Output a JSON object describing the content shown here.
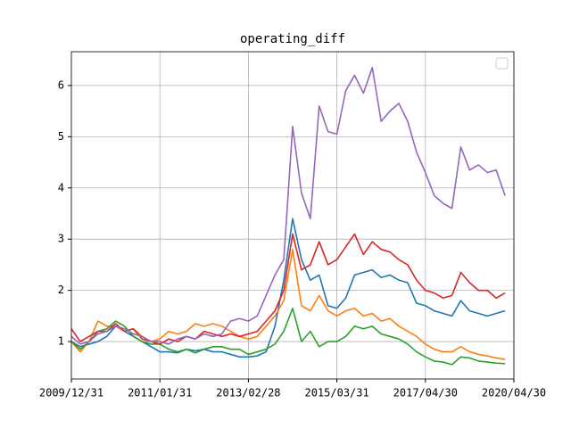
{
  "chart_data": {
    "type": "line",
    "title": "operating_diff",
    "xlim": [
      0,
      50
    ],
    "xticks": [
      {
        "value": 0,
        "label": "2009/12/31"
      },
      {
        "value": 10,
        "label": "2011/01/31"
      },
      {
        "value": 20,
        "label": "2013/02/28"
      },
      {
        "value": 30,
        "label": "2015/03/31"
      },
      {
        "value": 40,
        "label": "2017/04/30"
      },
      {
        "value": 50,
        "label": "2020/04/30"
      }
    ],
    "ylim": [
      0.27,
      6.66
    ],
    "yticks": [
      1,
      2,
      3,
      4,
      5,
      6
    ],
    "grid": true,
    "legend": "upper right",
    "series": [
      {
        "color": "#1f77b4",
        "values": [
          1.0,
          0.9,
          0.95,
          1.0,
          1.1,
          1.3,
          1.2,
          1.1,
          1.0,
          0.9,
          0.8,
          0.8,
          0.78,
          0.85,
          0.82,
          0.85,
          0.8,
          0.8,
          0.75,
          0.7,
          0.7,
          0.72,
          0.8,
          1.3,
          2.2,
          3.4,
          2.6,
          2.2,
          2.3,
          1.7,
          1.65,
          1.85,
          2.3,
          2.35,
          2.4,
          2.25,
          2.3,
          2.2,
          2.15,
          1.75,
          1.7,
          1.6,
          1.55,
          1.5,
          1.8,
          1.6,
          1.55,
          1.5,
          1.55,
          1.6
        ]
      },
      {
        "color": "#ff7f0e",
        "values": [
          1.0,
          0.8,
          1.0,
          1.4,
          1.3,
          1.3,
          1.2,
          1.25,
          1.1,
          1.0,
          1.05,
          1.2,
          1.15,
          1.2,
          1.35,
          1.3,
          1.35,
          1.3,
          1.2,
          1.1,
          1.05,
          1.1,
          1.3,
          1.5,
          1.8,
          2.8,
          1.7,
          1.6,
          1.9,
          1.6,
          1.5,
          1.6,
          1.65,
          1.5,
          1.55,
          1.4,
          1.45,
          1.3,
          1.2,
          1.1,
          0.95,
          0.85,
          0.8,
          0.8,
          0.9,
          0.8,
          0.75,
          0.72,
          0.68,
          0.65
        ]
      },
      {
        "color": "#2ca02c",
        "values": [
          1.0,
          0.85,
          1.0,
          1.2,
          1.25,
          1.4,
          1.3,
          1.1,
          1.0,
          0.95,
          0.95,
          0.85,
          0.8,
          0.85,
          0.78,
          0.85,
          0.9,
          0.9,
          0.85,
          0.85,
          0.75,
          0.8,
          0.85,
          0.95,
          1.2,
          1.65,
          1.0,
          1.2,
          0.9,
          1.0,
          1.0,
          1.1,
          1.3,
          1.25,
          1.3,
          1.15,
          1.1,
          1.05,
          0.95,
          0.8,
          0.7,
          0.62,
          0.6,
          0.55,
          0.7,
          0.68,
          0.62,
          0.6,
          0.58,
          0.57
        ]
      },
      {
        "color": "#d62728",
        "values": [
          1.25,
          1.0,
          1.1,
          1.2,
          1.2,
          1.35,
          1.2,
          1.25,
          1.05,
          1.0,
          0.95,
          1.05,
          1.0,
          1.1,
          1.05,
          1.2,
          1.15,
          1.1,
          1.15,
          1.1,
          1.15,
          1.2,
          1.4,
          1.6,
          2.0,
          3.1,
          2.4,
          2.5,
          2.95,
          2.5,
          2.6,
          2.85,
          3.1,
          2.7,
          2.95,
          2.8,
          2.75,
          2.6,
          2.5,
          2.2,
          2.0,
          1.95,
          1.85,
          1.9,
          2.35,
          2.15,
          2.0,
          2.0,
          1.85,
          1.95
        ]
      },
      {
        "color": "#9467bd",
        "values": [
          1.1,
          0.95,
          1.0,
          1.15,
          1.2,
          1.3,
          1.25,
          1.15,
          1.1,
          1.0,
          1.0,
          0.95,
          1.05,
          1.1,
          1.05,
          1.15,
          1.1,
          1.15,
          1.4,
          1.45,
          1.4,
          1.5,
          1.9,
          2.3,
          2.6,
          5.2,
          3.9,
          3.4,
          5.6,
          5.1,
          5.05,
          5.9,
          6.2,
          5.85,
          6.35,
          5.3,
          5.5,
          5.65,
          5.3,
          4.7,
          4.3,
          3.85,
          3.7,
          3.6,
          4.8,
          4.35,
          4.45,
          4.3,
          4.35,
          3.85
        ]
      }
    ]
  }
}
